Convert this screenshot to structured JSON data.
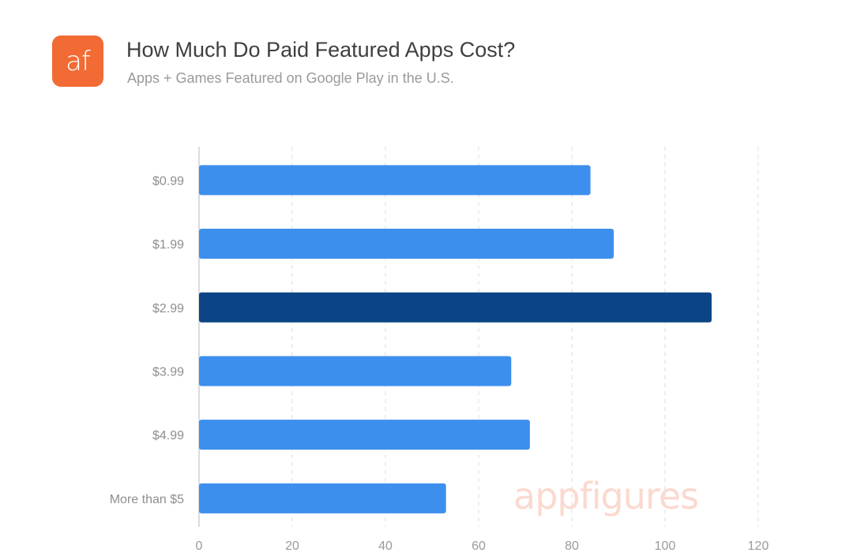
{
  "header": {
    "logo_text": "af",
    "title": "How Much Do Paid Featured Apps Cost?",
    "subtitle": "Apps + Games Featured on Google Play in the U.S."
  },
  "watermark": "appfigures",
  "colors": {
    "logo_bg": "#f26b34",
    "bar": "#3d8fed",
    "bar_highlight": "#0b4586",
    "grid": "#dcdcdc",
    "axis": "#cfcfcf",
    "watermark": "#fbd9cf"
  },
  "chart_data": {
    "type": "bar",
    "orientation": "horizontal",
    "categories": [
      "$0.99",
      "$1.99",
      "$2.99",
      "$3.99",
      "$4.99",
      "More than $5"
    ],
    "values": [
      84,
      89,
      110,
      67,
      71,
      53
    ],
    "highlight_index": 2,
    "xlim": [
      0,
      120
    ],
    "xticks": [
      0,
      20,
      40,
      60,
      80,
      100,
      120
    ],
    "grid": "vertical-dashed",
    "legend": "none"
  }
}
